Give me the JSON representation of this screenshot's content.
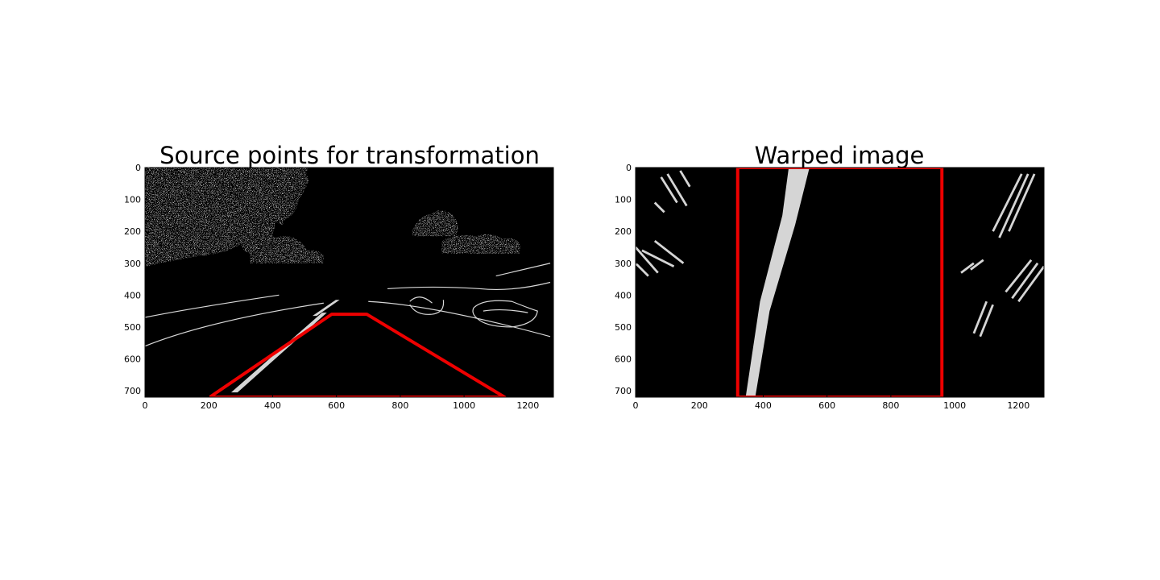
{
  "chart_data": [
    {
      "type": "image",
      "title": "Source points for transformation",
      "xlim": [
        0,
        1280
      ],
      "ylim": [
        720,
        0
      ],
      "x_ticks": [
        "0",
        "200",
        "400",
        "600",
        "800",
        "1000",
        "1200"
      ],
      "y_ticks": [
        "0",
        "100",
        "200",
        "300",
        "400",
        "500",
        "600",
        "700"
      ],
      "overlay_color": "#ee0000",
      "polygon": [
        [
          203,
          720
        ],
        [
          585,
          460
        ],
        [
          695,
          460
        ],
        [
          1127,
          720
        ]
      ]
    },
    {
      "type": "image",
      "title": "Warped image",
      "xlim": [
        0,
        1280
      ],
      "ylim": [
        720,
        0
      ],
      "x_ticks": [
        "0",
        "200",
        "400",
        "600",
        "800",
        "1000",
        "1200"
      ],
      "y_ticks": [
        "0",
        "100",
        "200",
        "300",
        "400",
        "500",
        "600",
        "700"
      ],
      "overlay_color": "#ee0000",
      "polygon": [
        [
          320,
          0
        ],
        [
          320,
          720
        ],
        [
          960,
          720
        ],
        [
          960,
          0
        ]
      ]
    }
  ]
}
